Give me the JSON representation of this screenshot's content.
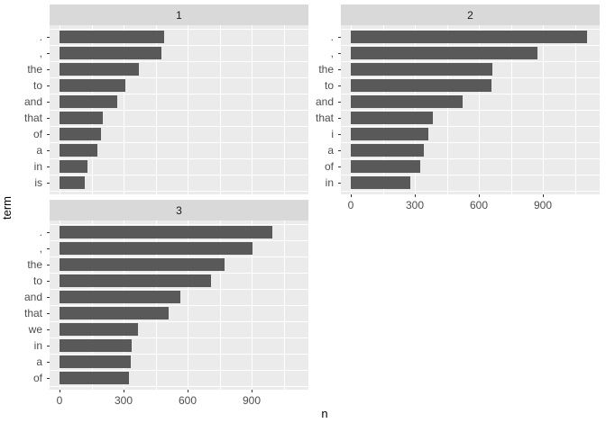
{
  "figure": {
    "kind": "ggplot-faceted-horizontal-bar-chart",
    "background": "#ffffff"
  },
  "chart_data": {
    "type": "bar",
    "orientation": "horizontal",
    "xlabel": "n",
    "ylabel": "term",
    "x_ticks": [
      0,
      300,
      600,
      900
    ],
    "x_minor_ticks": [
      150,
      450,
      750,
      1050
    ],
    "xlim": [
      -47,
      1166
    ],
    "grid": true,
    "legend": false,
    "facets": [
      {
        "label": "1",
        "terms": [
          ".",
          ",",
          "the",
          "to",
          "and",
          "that",
          "of",
          "a",
          "in",
          "is"
        ],
        "values": [
          488,
          478,
          372,
          310,
          270,
          202,
          193,
          176,
          131,
          120
        ],
        "show_x_axis": false
      },
      {
        "label": "2",
        "terms": [
          ".",
          ",",
          "the",
          "to",
          "and",
          "that",
          "i",
          "a",
          "of",
          "in"
        ],
        "values": [
          1105,
          876,
          662,
          657,
          523,
          383,
          363,
          341,
          324,
          279
        ],
        "show_x_axis": true
      },
      {
        "label": "3",
        "terms": [
          ".",
          ",",
          "the",
          "to",
          "and",
          "that",
          "we",
          "in",
          "a",
          "of"
        ],
        "values": [
          997,
          904,
          774,
          708,
          566,
          511,
          368,
          337,
          334,
          324
        ],
        "show_x_axis": true
      }
    ],
    "colors": {
      "bar": "#595959",
      "panel_bg": "#ebebeb",
      "strip_bg": "#d9d9d9",
      "grid": "#ffffff",
      "axis_text": "#4d4d4d",
      "title_text": "#000000"
    }
  }
}
